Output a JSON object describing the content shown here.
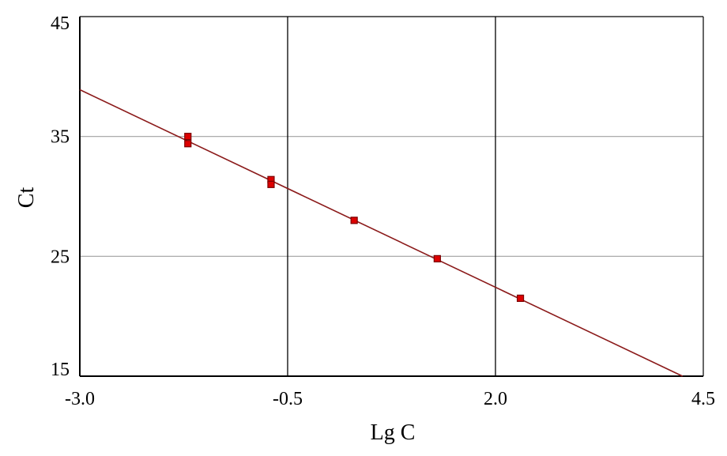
{
  "chart_data": {
    "type": "scatter",
    "xlabel": "Lg C",
    "ylabel": "Ct",
    "xlim": [
      -3.0,
      4.5
    ],
    "ylim": [
      15,
      45
    ],
    "x_ticks": [
      -3.0,
      -0.5,
      2.0,
      4.5
    ],
    "x_tick_labels": [
      "-3.0",
      "-0.5",
      "2.0",
      "4.5"
    ],
    "y_ticks": [
      15,
      25,
      35,
      45
    ],
    "y_tick_labels": [
      "15",
      "25",
      "35",
      "45"
    ],
    "x_gridlines": [
      -0.5,
      2.0
    ],
    "y_gridlines": [
      25,
      35
    ],
    "grid": true,
    "colors": {
      "points": "#dd0000",
      "point_border": "#7a0000",
      "fit_line": "#8b1a1a",
      "gridline_vertical": "#000000",
      "gridline_horizontal": "#a0a0a0"
    },
    "points": [
      {
        "x": -1.7,
        "y": 35.0
      },
      {
        "x": -1.7,
        "y": 34.4
      },
      {
        "x": -0.7,
        "y": 31.4
      },
      {
        "x": -0.7,
        "y": 31.0
      },
      {
        "x": 0.3,
        "y": 28.0
      },
      {
        "x": 1.3,
        "y": 24.8
      },
      {
        "x": 2.3,
        "y": 21.5
      }
    ],
    "fit_line": {
      "x": [
        -3.0,
        4.25
      ],
      "y": [
        38.9,
        15.0
      ]
    }
  }
}
